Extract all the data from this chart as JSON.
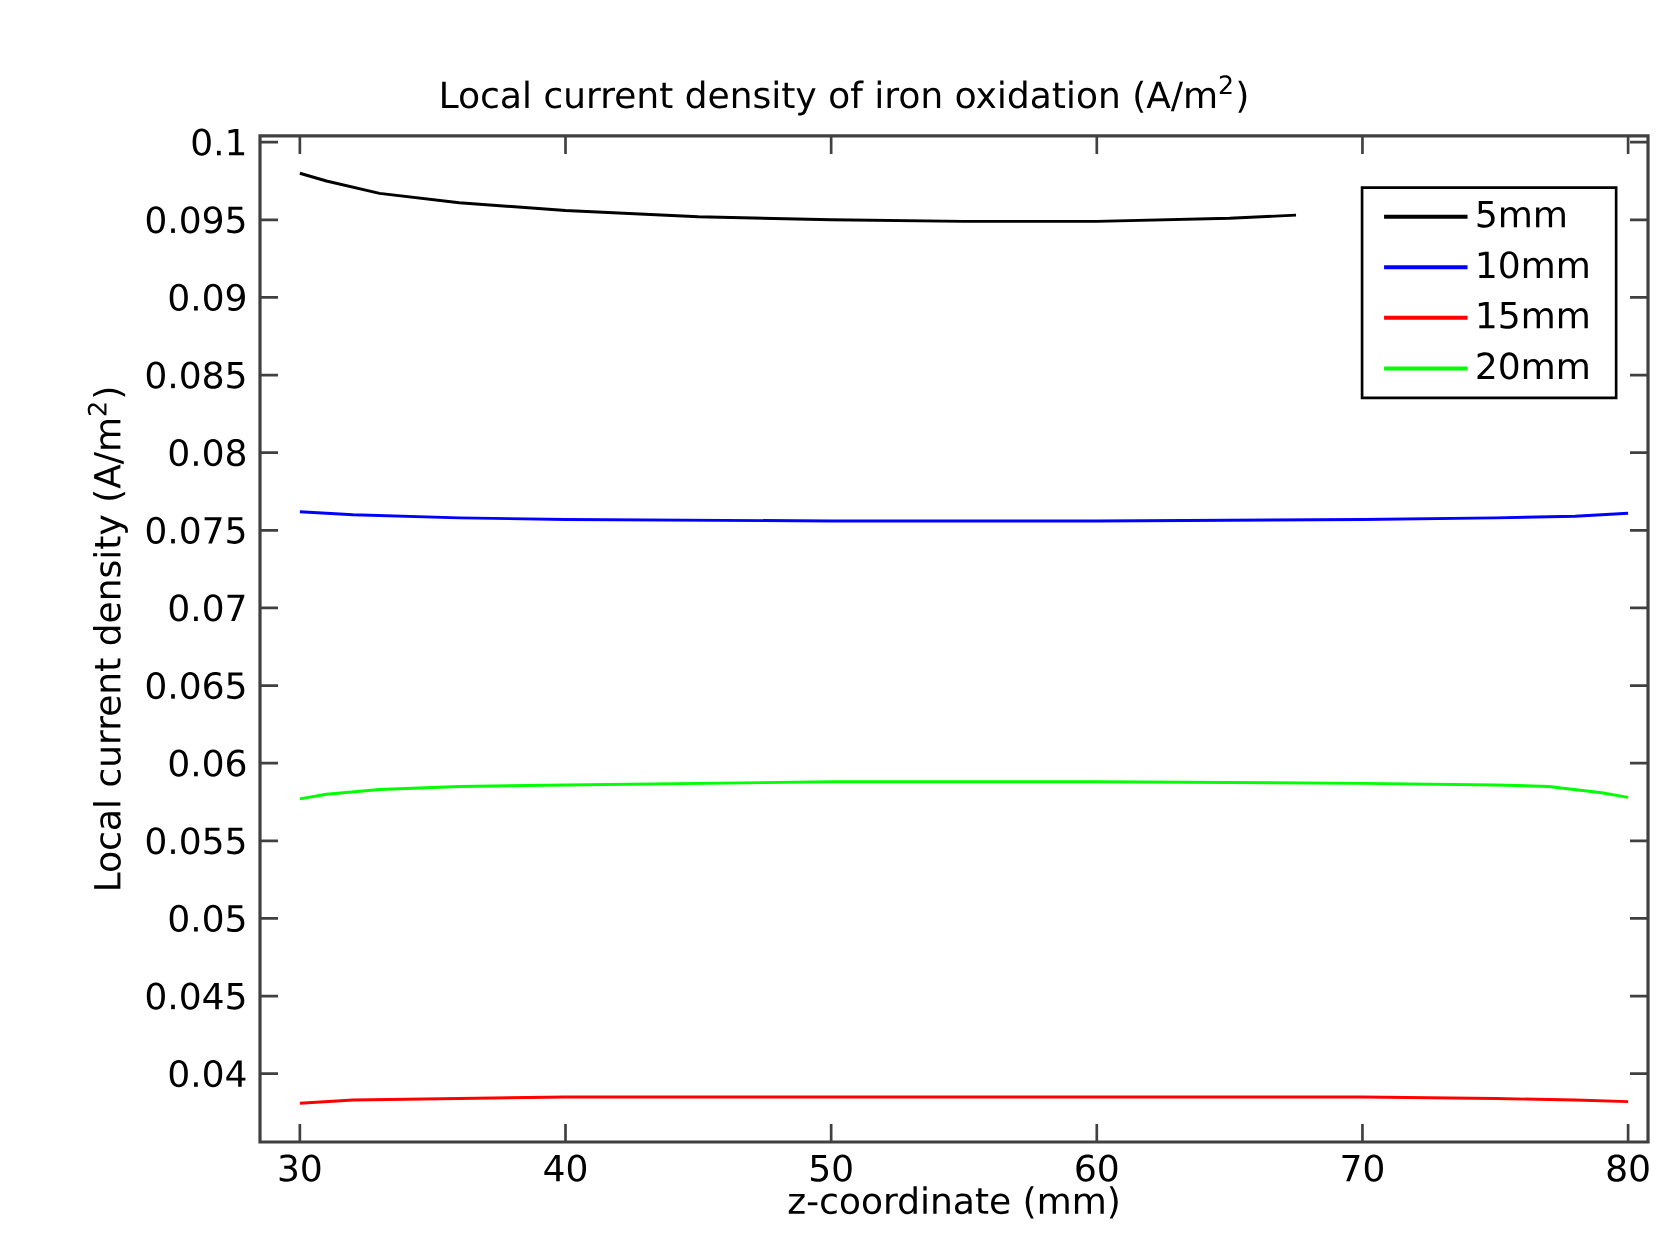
{
  "chart_data": {
    "type": "line",
    "title": "Local current density of iron oxidation (A/m$^{2}$)",
    "xlabel": "z-coordinate (mm)",
    "ylabel": "Local current density (A/m$^{2}$)",
    "xlim": [
      28.5,
      80.75
    ],
    "ylim": [
      0.0356,
      0.1004
    ],
    "xticks": [
      30,
      40,
      50,
      60,
      70,
      80
    ],
    "yticks": [
      0.04,
      0.045,
      0.05,
      0.055,
      0.06,
      0.065,
      0.07,
      0.075,
      0.08,
      0.085,
      0.09,
      0.095,
      0.1
    ],
    "grid": false,
    "legend": "top right",
    "marker": "none",
    "line_style": "solid",
    "series": [
      {
        "name": "5mm",
        "color": "#000000",
        "x": [
          30,
          31,
          33,
          36,
          40,
          45,
          50,
          55,
          60,
          65,
          67.5
        ],
        "values": [
          0.098,
          0.0975,
          0.0967,
          0.0961,
          0.0956,
          0.0952,
          0.095,
          0.0949,
          0.0949,
          0.0951,
          0.0953
        ]
      },
      {
        "name": "10mm",
        "color": "#0000ff",
        "x": [
          30,
          32,
          36,
          40,
          50,
          60,
          70,
          75,
          78,
          80
        ],
        "values": [
          0.0762,
          0.076,
          0.0758,
          0.0757,
          0.0756,
          0.0756,
          0.0757,
          0.0758,
          0.0759,
          0.0761
        ]
      },
      {
        "name": "15mm",
        "color": "#ff0000",
        "x": [
          30,
          32,
          36,
          40,
          50,
          60,
          70,
          75,
          78,
          80
        ],
        "values": [
          0.0381,
          0.0383,
          0.0384,
          0.0385,
          0.0385,
          0.0385,
          0.0385,
          0.0384,
          0.0383,
          0.0382
        ]
      },
      {
        "name": "20mm",
        "color": "#00ff00",
        "x": [
          30,
          31,
          33,
          36,
          40,
          50,
          60,
          70,
          75,
          77,
          79,
          80
        ],
        "values": [
          0.0577,
          0.058,
          0.0583,
          0.0585,
          0.0586,
          0.0588,
          0.0588,
          0.0587,
          0.0586,
          0.0585,
          0.0581,
          0.0578
        ]
      }
    ]
  }
}
